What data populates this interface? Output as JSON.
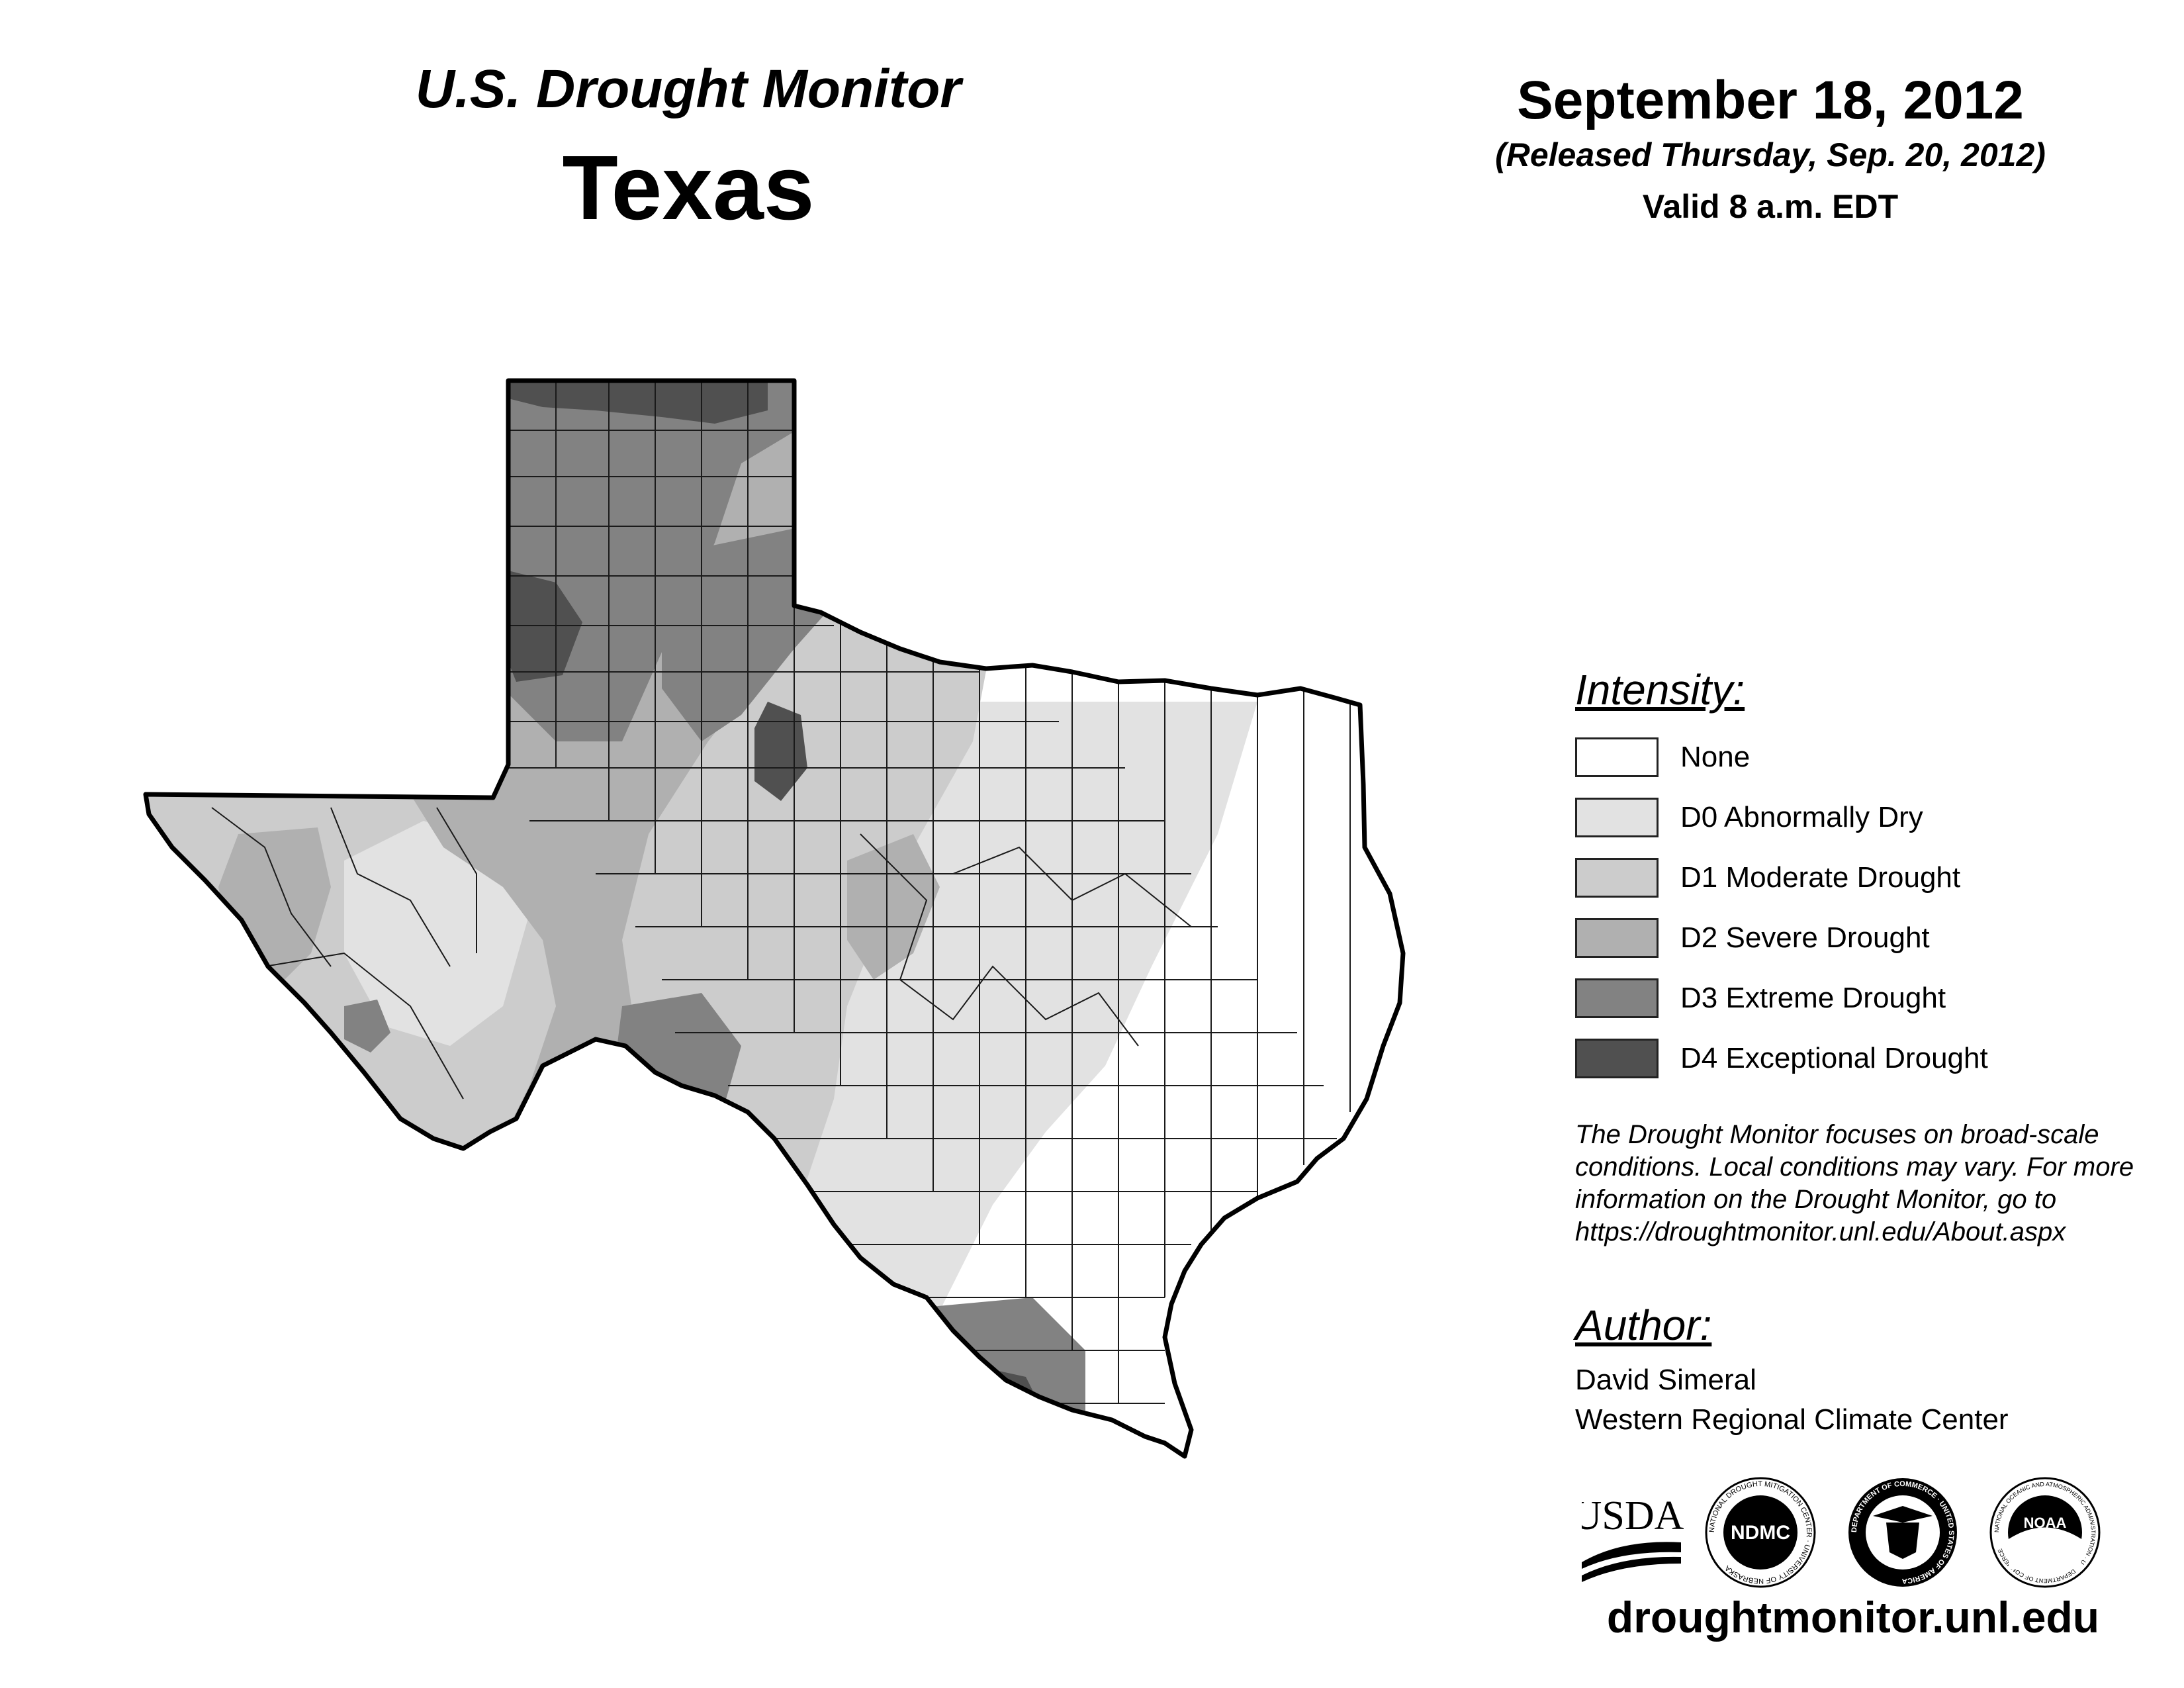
{
  "header": {
    "program": "U.S. Drought Monitor",
    "state": "Texas",
    "date": "September 18, 2012",
    "released": "(Released Thursday, Sep. 20, 2012)",
    "valid": "Valid 8 a.m. EDT"
  },
  "legend": {
    "title": "Intensity:",
    "items": [
      {
        "label": "None",
        "color": "#ffffff"
      },
      {
        "label": "D0 Abnormally Dry",
        "color": "#e2e2e2"
      },
      {
        "label": "D1 Moderate Drought",
        "color": "#cccccc"
      },
      {
        "label": "D2 Severe Drought",
        "color": "#b0b0b0"
      },
      {
        "label": "D3 Extreme Drought",
        "color": "#828282"
      },
      {
        "label": "D4 Exceptional Drought",
        "color": "#505050"
      }
    ]
  },
  "note": {
    "line1": "The Drought Monitor focuses on broad-scale",
    "line2": "conditions. Local conditions may vary. For more",
    "line3": "information on the Drought Monitor, go to",
    "line4": "https://droughtmonitor.unl.edu/About.aspx"
  },
  "author": {
    "title": "Author:",
    "name": "David Simeral",
    "organization": "Western Regional Climate Center"
  },
  "logos": {
    "usda": "USDA",
    "ndmc": "NDMC",
    "ndmc_ring": "NATIONAL DROUGHT MITIGATION CENTER · UNIVERSITY OF NEBRASKA",
    "commerce_ring": "DEPARTMENT OF COMMERCE · UNITED STATES OF AMERICA",
    "noaa": "NOAA",
    "noaa_ring": "NATIONAL OCEANIC AND ATMOSPHERIC ADMINISTRATION · U.S. DEPARTMENT OF COMMERCE"
  },
  "website": "droughtmonitor.unl.edu"
}
